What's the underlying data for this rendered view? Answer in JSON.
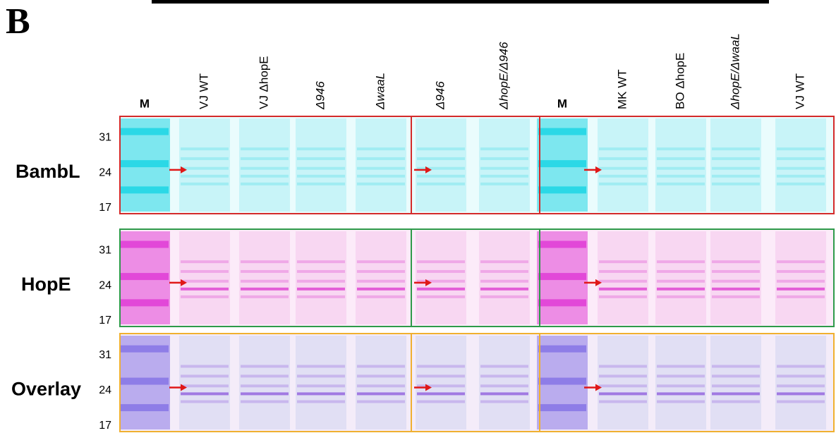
{
  "panel_label": "B",
  "lane_labels": [
    "M",
    "VJ WT",
    "VJ ΔhopE",
    "Δ946",
    "ΔwaaL",
    "Δ946",
    "ΔhopE/Δ946",
    "M",
    "MK WT",
    "BO ΔhopE",
    "ΔhopE/ΔwaaL",
    "VJ WT"
  ],
  "rows": [
    {
      "label": "BambL",
      "markers": [
        31,
        24,
        17
      ]
    },
    {
      "label": "HopE",
      "markers": [
        31,
        24,
        17
      ]
    },
    {
      "label": "Overlay",
      "markers": [
        31,
        24,
        17
      ]
    }
  ]
}
